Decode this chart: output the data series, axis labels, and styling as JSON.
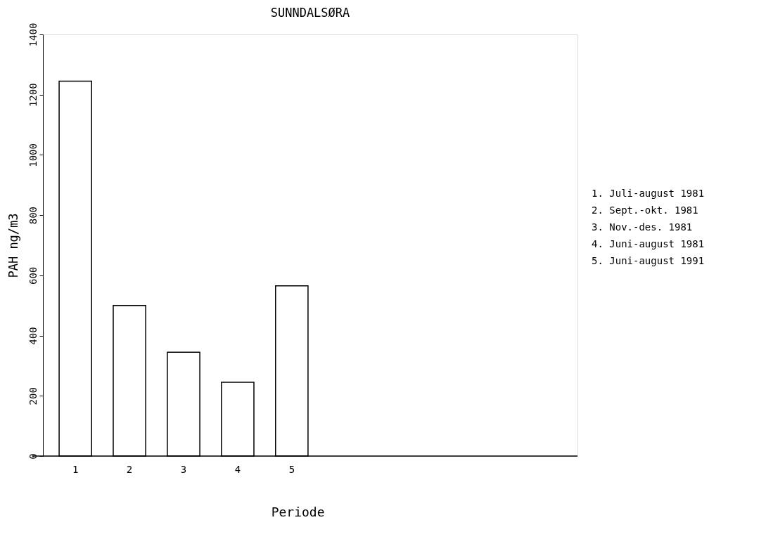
{
  "chart_data": {
    "type": "bar",
    "title": "SUNNDALSØRA",
    "ylabel": "PAH ng/m3",
    "xlabel": "Periode",
    "categories": [
      "1",
      "2",
      "3",
      "4",
      "5"
    ],
    "values": [
      1245,
      500,
      345,
      245,
      565
    ],
    "color": "#ffffff",
    "ylim": [
      0,
      1400
    ],
    "yticks": [
      0,
      200,
      400,
      600,
      800,
      1000,
      1200,
      1400
    ],
    "grid": false,
    "annotations": [
      "1. Juli-august 1981",
      "2. Sept.-okt. 1981",
      "3. Nov.-des. 1981",
      "4. Juni-august 1981",
      "5. Juni-august 1991"
    ]
  }
}
